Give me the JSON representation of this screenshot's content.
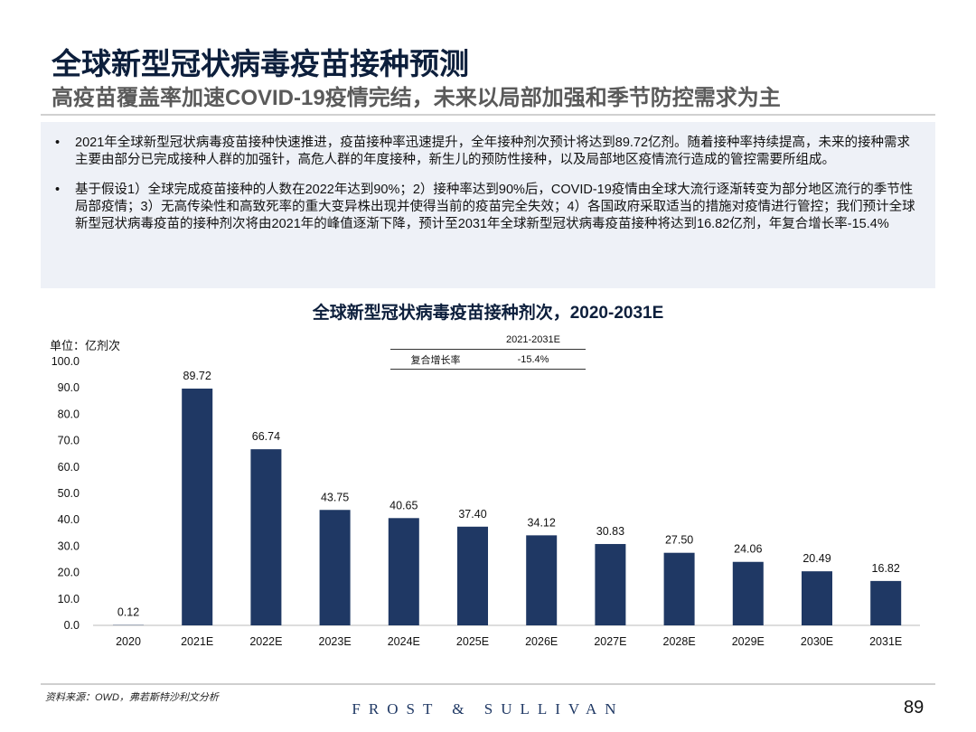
{
  "header": {
    "title": "全球新型冠状病毒疫苗接种预测",
    "subtitle": "高疫苗覆盖率加速COVID-19疫情完结，未来以局部加强和季节防控需求为主"
  },
  "bullets": [
    "2021年全球新型冠状病毒疫苗接种快速推进，疫苗接种率迅速提升，全年接种剂次预计将达到89.72亿剂。随着接种率持续提高，未来的接种需求主要由部分已完成接种人群的加强针，高危人群的年度接种，新生儿的预防性接种，以及局部地区疫情流行造成的管控需要所组成。",
    "基于假设1）全球完成疫苗接种的人数在2022年达到90%；2）接种率达到90%后，COVID-19疫情由全球大流行逐渐转变为部分地区流行的季节性局部疫情；3）无高传染性和高致死率的重大变异株出现并使得当前的疫苗完全失效；4）各国政府采取适当的措施对疫情进行管控；我们预计全球新型冠状病毒疫苗的接种剂次将由2021年的峰值逐渐下降，预计至2031年全球新型冠状病毒疫苗接种将达到16.82亿剂，年复合增长率-15.4%"
  ],
  "chart_data": {
    "type": "bar",
    "title": "全球新型冠状病毒疫苗接种剂次，2020-2031E",
    "ylabel": "单位：亿剂次",
    "ylim": [
      0,
      100
    ],
    "yticks": [
      "0.0",
      "10.0",
      "20.0",
      "30.0",
      "40.0",
      "50.0",
      "60.0",
      "70.0",
      "80.0",
      "90.0",
      "100.0"
    ],
    "categories": [
      "2020",
      "2021E",
      "2022E",
      "2023E",
      "2024E",
      "2025E",
      "2026E",
      "2027E",
      "2028E",
      "2029E",
      "2030E",
      "2031E"
    ],
    "values": [
      0.12,
      89.72,
      66.74,
      43.75,
      40.65,
      37.4,
      34.12,
      30.83,
      27.5,
      24.06,
      20.49,
      16.82
    ],
    "labels": [
      "0.12",
      "89.72",
      "66.74",
      "43.75",
      "40.65",
      "37.40",
      "34.12",
      "30.83",
      "27.50",
      "24.06",
      "20.49",
      "16.82"
    ],
    "bar_color": "#1f3864",
    "grid": false,
    "cagr_table": {
      "header": "2021-2031E",
      "row_label": "复合增长率",
      "value": "-15.4%"
    }
  },
  "footer": {
    "source": "资料来源：OWD，弗若斯特沙利文分析",
    "logo": "FROST & SULLIVAN",
    "page": "89"
  }
}
